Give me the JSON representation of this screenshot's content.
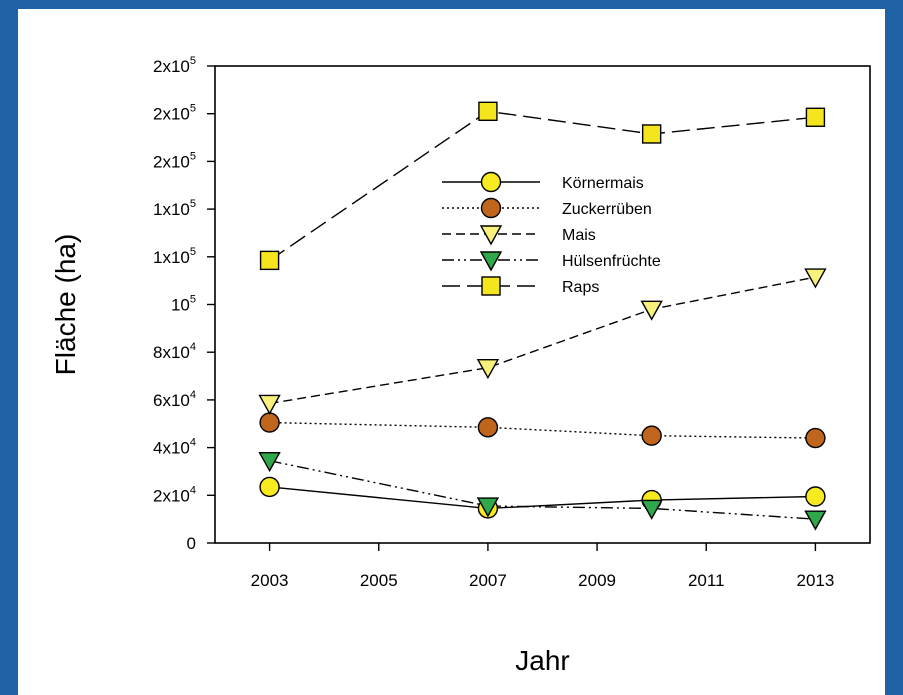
{
  "chart_data": {
    "type": "line",
    "xlabel": "Jahr",
    "ylabel": "Fläche (ha)",
    "xlim": [
      2002,
      2014
    ],
    "ylim": [
      0,
      200000
    ],
    "xticks": [
      2003,
      2005,
      2007,
      2009,
      2011,
      2013
    ],
    "yticks": [
      {
        "value": 0,
        "mant": "0",
        "exp": ""
      },
      {
        "value": 20000,
        "mant": "2x10",
        "exp": "4"
      },
      {
        "value": 40000,
        "mant": "4x10",
        "exp": "4"
      },
      {
        "value": 60000,
        "mant": "6x10",
        "exp": "4"
      },
      {
        "value": 80000,
        "mant": "8x10",
        "exp": "4"
      },
      {
        "value": 100000,
        "mant": "10",
        "exp": "5"
      },
      {
        "value": 120000,
        "mant": "1x10",
        "exp": "5"
      },
      {
        "value": 140000,
        "mant": "1x10",
        "exp": "5"
      },
      {
        "value": 160000,
        "mant": "2x10",
        "exp": "5"
      },
      {
        "value": 180000,
        "mant": "2x10",
        "exp": "5"
      },
      {
        "value": 200000,
        "mant": "2x10",
        "exp": "5"
      }
    ],
    "legend_position": "top-center",
    "grid": false,
    "series": [
      {
        "name": "Körnermais",
        "marker": "circle",
        "color": "#f7ea1e",
        "dash": "",
        "x": [
          2003,
          2007,
          2010,
          2013
        ],
        "y": [
          23500,
          14500,
          18000,
          19500
        ]
      },
      {
        "name": "Zuckerrüben",
        "marker": "circle",
        "color": "#c0661c",
        "dash": "2,3",
        "x": [
          2003,
          2007,
          2010,
          2013
        ],
        "y": [
          50500,
          48500,
          45000,
          44000
        ]
      },
      {
        "name": "Mais",
        "marker": "triangle-down",
        "color": "#f7f07a",
        "dash": "9,5",
        "x": [
          2003,
          2007,
          2010,
          2013
        ],
        "y": [
          58500,
          73500,
          98000,
          111500
        ]
      },
      {
        "name": "Hülsenfrüchte",
        "marker": "triangle-down",
        "color": "#2ea84a",
        "dash": "12,4,2,4,2,4",
        "x": [
          2003,
          2007,
          2010,
          2013
        ],
        "y": [
          34500,
          15500,
          14500,
          10000
        ]
      },
      {
        "name": "Raps",
        "marker": "square",
        "color": "#f5e51c",
        "dash": "18,7",
        "x": [
          2003,
          2007,
          2010,
          2013
        ],
        "y": [
          118500,
          181000,
          171500,
          178500
        ]
      }
    ]
  }
}
